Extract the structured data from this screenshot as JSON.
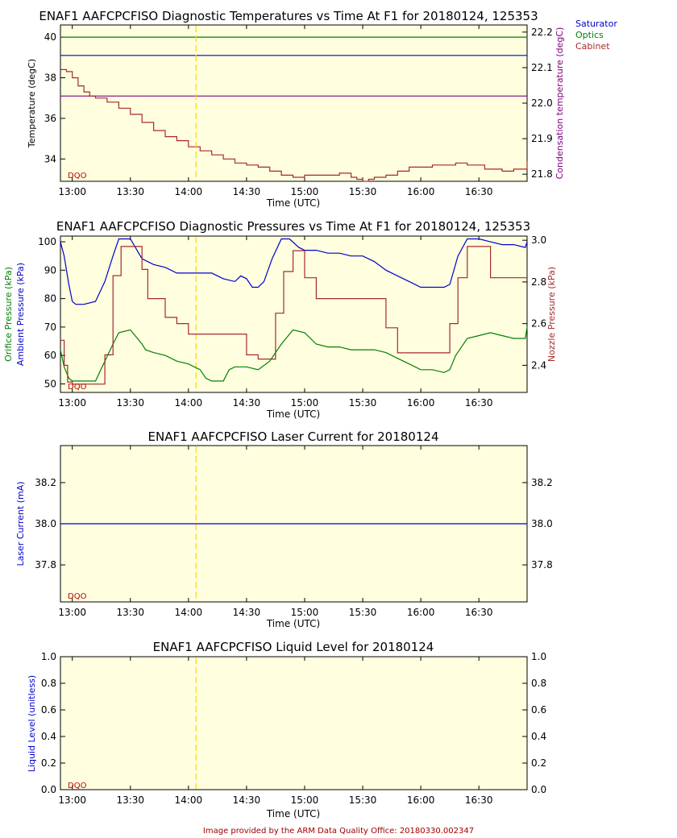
{
  "colors": {
    "plot_bg": "#ffffe0",
    "saturator": "#0000cc",
    "optics": "#008000",
    "cabinet": "#a52a2a",
    "condensation": "#800080",
    "orifice": "#008000",
    "ambient": "#0000cc",
    "nozzle": "#a52a2a",
    "laser": "#0000cc",
    "marker": "#ffd700",
    "dqo": "#c00000"
  },
  "footer": "Image provided by the ARM Data Quality Office: 20180330.002347",
  "chart_data": [
    {
      "type": "line",
      "title": "ENAF1 AAFCPCFISO Diagnostic Temperatures vs Time At F1 for 20180124, 125353",
      "xlabel": "Time (UTC)",
      "ylabel": "Temperature (degC)",
      "ylabel_right": "Condensation temperature (degC)",
      "x_ticks": [
        "13:00",
        "13:30",
        "14:00",
        "14:30",
        "15:00",
        "15:30",
        "16:00",
        "16:30"
      ],
      "x_tick_hours": [
        13.0,
        13.5,
        14.0,
        14.5,
        15.0,
        15.5,
        16.0,
        16.5
      ],
      "xlim": [
        12.898,
        16.915
      ],
      "ylim": [
        32.9,
        40.6
      ],
      "y_ticks": [
        34,
        36,
        38,
        40
      ],
      "ylim_right": [
        21.78,
        22.22
      ],
      "y_ticks_right": [
        21.8,
        21.9,
        22.0,
        22.1,
        22.2
      ],
      "marker_hour": 14.065,
      "legend": [
        "Saturator",
        "Optics",
        "Cabinet"
      ],
      "flag": "DQO",
      "series": [
        {
          "name": "Saturator",
          "axis": "left",
          "x": [
            12.898,
            16.915
          ],
          "y": [
            39.1,
            39.1
          ]
        },
        {
          "name": "Optics",
          "axis": "left",
          "x": [
            12.898,
            16.915
          ],
          "y": [
            40.0,
            40.0
          ]
        },
        {
          "name": "Condensation",
          "axis": "right",
          "x": [
            12.898,
            16.915
          ],
          "y": [
            22.02,
            22.02
          ]
        },
        {
          "name": "Cabinet",
          "axis": "left",
          "x": [
            12.898,
            12.95,
            13.0,
            13.05,
            13.1,
            13.15,
            13.2,
            13.3,
            13.4,
            13.5,
            13.6,
            13.7,
            13.8,
            13.9,
            14.0,
            14.1,
            14.2,
            14.3,
            14.4,
            14.5,
            14.6,
            14.7,
            14.8,
            14.9,
            15.0,
            15.1,
            15.2,
            15.3,
            15.4,
            15.45,
            15.5,
            15.55,
            15.6,
            15.7,
            15.8,
            15.9,
            16.0,
            16.1,
            16.2,
            16.3,
            16.4,
            16.5,
            16.55,
            16.6,
            16.7,
            16.8,
            16.915
          ],
          "y": [
            38.4,
            38.3,
            38.0,
            37.6,
            37.3,
            37.1,
            37.0,
            36.8,
            36.5,
            36.2,
            35.8,
            35.4,
            35.1,
            34.9,
            34.6,
            34.4,
            34.2,
            34.0,
            33.8,
            33.7,
            33.6,
            33.4,
            33.2,
            33.1,
            33.2,
            33.2,
            33.2,
            33.3,
            33.1,
            33.0,
            32.9,
            33.0,
            33.1,
            33.2,
            33.4,
            33.6,
            33.6,
            33.7,
            33.7,
            33.8,
            33.7,
            33.7,
            33.5,
            33.5,
            33.4,
            33.5,
            33.9
          ]
        }
      ]
    },
    {
      "type": "line",
      "title": "ENAF1 AAFCPCFISO Diagnostic Pressures vs Time At F1 for 20180124, 125353",
      "xlabel": "Time (UTC)",
      "ylabel_lines": [
        "Orifice Pressure (kPa)",
        "Ambient Pressure (kPa)"
      ],
      "ylabel_right": "Nozzle Pressure (kPa)",
      "x_ticks": [
        "13:00",
        "13:30",
        "14:00",
        "14:30",
        "15:00",
        "15:30",
        "16:00",
        "16:30"
      ],
      "x_tick_hours": [
        13.0,
        13.5,
        14.0,
        14.5,
        15.0,
        15.5,
        16.0,
        16.5
      ],
      "xlim": [
        12.898,
        16.915
      ],
      "ylim": [
        47,
        102
      ],
      "y_ticks": [
        50,
        60,
        70,
        80,
        90,
        100
      ],
      "ylim_right": [
        2.27,
        3.02
      ],
      "y_ticks_right": [
        2.4,
        2.6,
        2.8,
        3.0
      ],
      "flag": "DQO",
      "series": [
        {
          "name": "Ambient Pressure",
          "axis": "left",
          "x": [
            12.898,
            12.93,
            12.97,
            13.0,
            13.03,
            13.1,
            13.2,
            13.28,
            13.35,
            13.4,
            13.5,
            13.6,
            13.7,
            13.8,
            13.9,
            14.0,
            14.1,
            14.2,
            14.3,
            14.4,
            14.45,
            14.5,
            14.55,
            14.6,
            14.65,
            14.72,
            14.8,
            14.87,
            14.95,
            15.0,
            15.1,
            15.2,
            15.3,
            15.4,
            15.5,
            15.6,
            15.7,
            15.8,
            15.9,
            16.0,
            16.1,
            16.2,
            16.25,
            16.32,
            16.4,
            16.5,
            16.6,
            16.7,
            16.8,
            16.9,
            16.915
          ],
          "y": [
            100,
            95,
            85,
            79,
            78,
            78,
            79,
            86,
            95,
            101,
            101,
            94,
            92,
            91,
            89,
            89,
            89,
            89,
            87,
            86,
            88,
            87,
            84,
            84,
            86,
            94,
            101,
            101,
            98,
            97,
            97,
            96,
            96,
            95,
            95,
            93,
            90,
            88,
            86,
            84,
            84,
            84,
            85,
            95,
            101,
            101,
            100,
            99,
            99,
            98,
            100
          ]
        },
        {
          "name": "Orifice Pressure",
          "axis": "left",
          "x": [
            12.898,
            12.93,
            12.97,
            13.0,
            13.05,
            13.1,
            13.2,
            13.28,
            13.35,
            13.4,
            13.5,
            13.6,
            13.63,
            13.7,
            13.8,
            13.9,
            14.0,
            14.1,
            14.15,
            14.2,
            14.3,
            14.35,
            14.4,
            14.5,
            14.6,
            14.7,
            14.8,
            14.9,
            15.0,
            15.05,
            15.1,
            15.2,
            15.3,
            15.4,
            15.5,
            15.6,
            15.7,
            15.8,
            15.9,
            16.0,
            16.1,
            16.2,
            16.25,
            16.3,
            16.4,
            16.5,
            16.6,
            16.7,
            16.8,
            16.9,
            16.915
          ],
          "y": [
            62,
            56,
            52,
            51,
            51,
            51,
            51,
            58,
            64,
            68,
            69,
            64,
            62,
            61,
            60,
            58,
            57,
            55,
            52,
            51,
            51,
            55,
            56,
            56,
            55,
            58,
            64,
            69,
            68,
            66,
            64,
            63,
            63,
            62,
            62,
            62,
            61,
            59,
            57,
            55,
            55,
            54,
            55,
            60,
            66,
            67,
            68,
            67,
            66,
            66,
            70
          ]
        },
        {
          "name": "Nozzle Pressure",
          "axis": "right",
          "x": [
            12.898,
            12.93,
            12.96,
            13.0,
            13.1,
            13.2,
            13.28,
            13.35,
            13.42,
            13.5,
            13.6,
            13.65,
            13.8,
            13.9,
            14.0,
            14.1,
            14.2,
            14.4,
            14.5,
            14.6,
            14.7,
            14.75,
            14.82,
            14.9,
            14.95,
            15.0,
            15.1,
            15.2,
            15.3,
            15.4,
            15.5,
            15.6,
            15.7,
            15.8,
            15.9,
            16.0,
            16.1,
            16.2,
            16.25,
            16.32,
            16.4,
            16.5,
            16.6,
            16.7,
            16.8,
            16.9,
            16.915
          ],
          "y": [
            2.52,
            2.4,
            2.32,
            2.31,
            2.31,
            2.31,
            2.45,
            2.83,
            2.97,
            2.97,
            2.86,
            2.72,
            2.63,
            2.6,
            2.55,
            2.55,
            2.55,
            2.55,
            2.45,
            2.43,
            2.43,
            2.65,
            2.85,
            2.95,
            2.95,
            2.82,
            2.72,
            2.72,
            2.72,
            2.72,
            2.72,
            2.72,
            2.58,
            2.46,
            2.46,
            2.46,
            2.46,
            2.46,
            2.6,
            2.82,
            2.97,
            2.97,
            2.82,
            2.82,
            2.82,
            2.82,
            2.82
          ]
        }
      ]
    },
    {
      "type": "line",
      "title": "ENAF1 AAFCPCFISO Laser Current for 20180124",
      "xlabel": "Time (UTC)",
      "ylabel": "Laser Current (mA)",
      "x_ticks": [
        "13:00",
        "13:30",
        "14:00",
        "14:30",
        "15:00",
        "15:30",
        "16:00",
        "16:30"
      ],
      "x_tick_hours": [
        13.0,
        13.5,
        14.0,
        14.5,
        15.0,
        15.5,
        16.0,
        16.5
      ],
      "xlim": [
        12.898,
        16.915
      ],
      "ylim": [
        37.62,
        38.38
      ],
      "y_ticks": [
        37.8,
        38.0,
        38.2
      ],
      "flag": "DQO",
      "series": [
        {
          "name": "Laser Current",
          "axis": "left",
          "x": [
            12.898,
            16.915
          ],
          "y": [
            38.0,
            38.0
          ]
        }
      ]
    },
    {
      "type": "line",
      "title": "ENAF1 AAFCPCFISO Liquid Level for 20180124",
      "xlabel": "Time (UTC)",
      "ylabel": "Liquid Level (unitless)",
      "x_ticks": [
        "13:00",
        "13:30",
        "14:00",
        "14:30",
        "15:00",
        "15:30",
        "16:00",
        "16:30"
      ],
      "x_tick_hours": [
        13.0,
        13.5,
        14.0,
        14.5,
        15.0,
        15.5,
        16.0,
        16.5
      ],
      "xlim": [
        12.898,
        16.915
      ],
      "ylim": [
        0.0,
        1.0
      ],
      "y_ticks": [
        0.0,
        0.2,
        0.4,
        0.6,
        0.8,
        1.0
      ],
      "flag": "DQO",
      "series": []
    }
  ]
}
